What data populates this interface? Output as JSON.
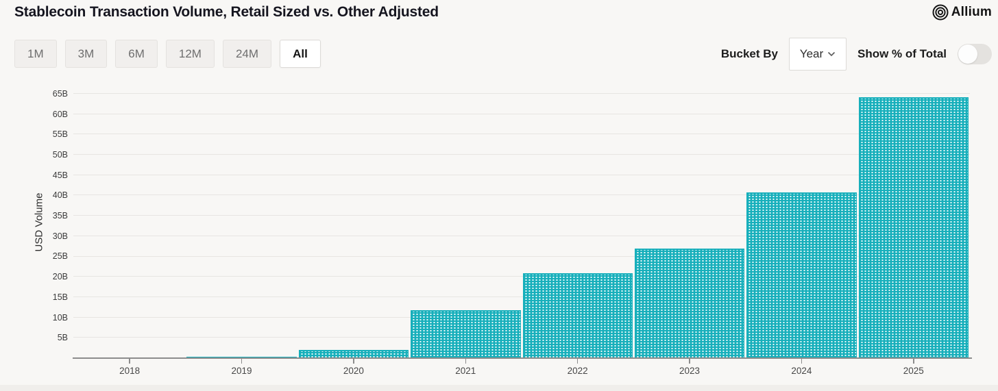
{
  "header": {
    "title": "Stablecoin Transaction Volume, Retail Sized vs. Other Adjusted",
    "brand": {
      "name": "Allium"
    }
  },
  "controls": {
    "range_buttons": [
      {
        "label": "1M",
        "active": false
      },
      {
        "label": "3M",
        "active": false
      },
      {
        "label": "6M",
        "active": false
      },
      {
        "label": "12M",
        "active": false
      },
      {
        "label": "24M",
        "active": false
      },
      {
        "label": "All",
        "active": true
      }
    ],
    "bucket_by": {
      "label": "Bucket By",
      "value": "Year"
    },
    "show_pct_toggle": {
      "label": "Show % of Total",
      "on": false
    }
  },
  "chart_data": {
    "type": "bar",
    "title": "Stablecoin Transaction Volume, Retail Sized vs. Other Adjusted",
    "categories": [
      "2018",
      "2019",
      "2020",
      "2021",
      "2022",
      "2023",
      "2024",
      "2025"
    ],
    "values": [
      0.1,
      0.6,
      2.4,
      12.2,
      21.2,
      27.2,
      41.0,
      64.5
    ],
    "values_unit": "B",
    "xlabel": "",
    "ylabel": "USD Volume",
    "ylim": [
      0,
      67
    ],
    "ytick_values": [
      5,
      10,
      15,
      20,
      25,
      30,
      35,
      40,
      45,
      50,
      55,
      60,
      65
    ],
    "ytick_labels": [
      "5B",
      "10B",
      "15B",
      "20B",
      "25B",
      "30B",
      "35B",
      "40B",
      "45B",
      "50B",
      "55B",
      "60B",
      "65B"
    ],
    "grid": true,
    "legend": "none",
    "bar_color": "#17afbb",
    "bar_pattern": "white-dot-grid"
  }
}
